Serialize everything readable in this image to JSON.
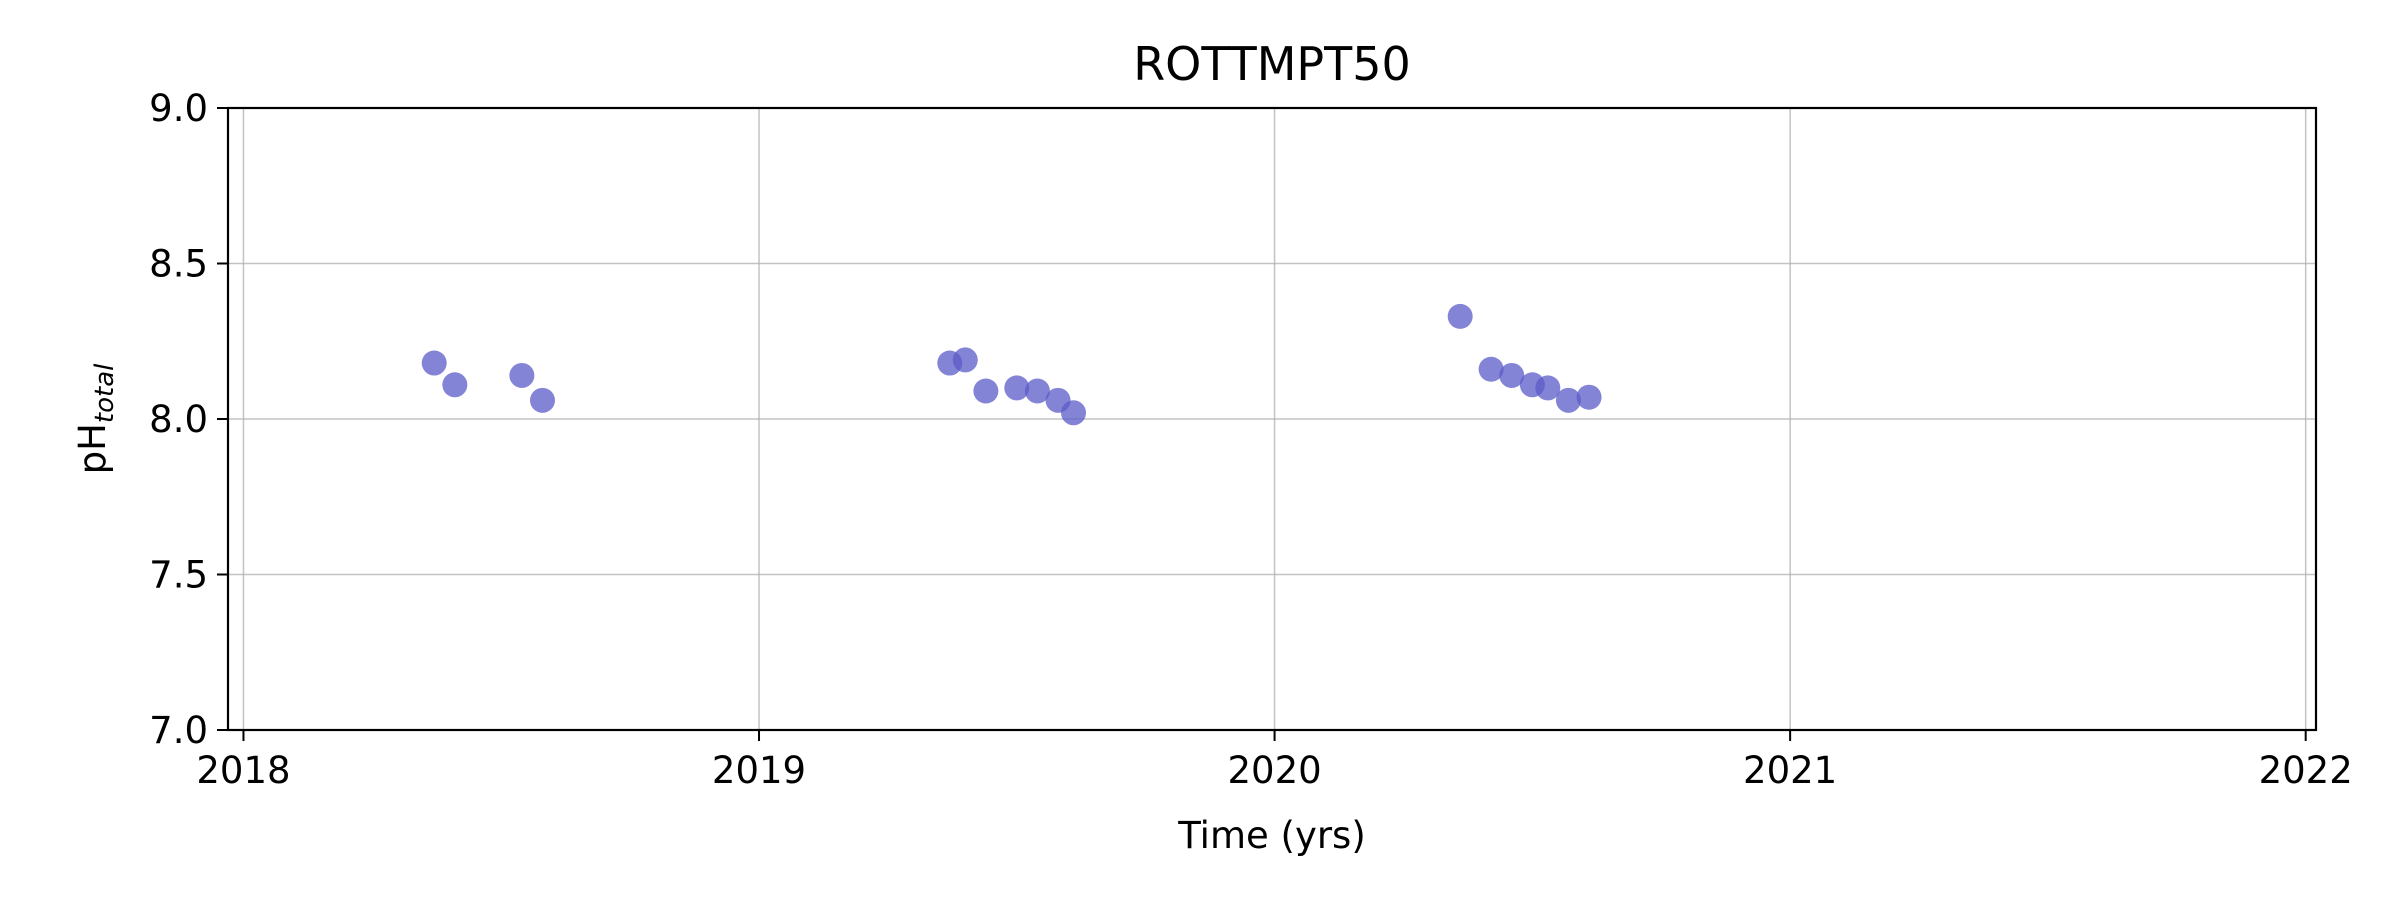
{
  "chart_data": {
    "type": "scatter",
    "title": "ROTTMPT50",
    "xlabel": "Time (yrs)",
    "ylabel_main": "pH",
    "ylabel_sub": "total",
    "xlim": [
      2017.97,
      2022.02
    ],
    "ylim": [
      7.0,
      9.0
    ],
    "xticks": [
      2018,
      2019,
      2020,
      2021,
      2022
    ],
    "xtick_labels": [
      "2018",
      "2019",
      "2020",
      "2021",
      "2022"
    ],
    "yticks": [
      7.0,
      7.5,
      8.0,
      8.5,
      9.0
    ],
    "ytick_labels": [
      "7.0",
      "7.5",
      "8.0",
      "8.5",
      "9.0"
    ],
    "grid": true,
    "marker_color": "#5b5bc8",
    "marker_opacity": 0.75,
    "series": [
      {
        "x": [
          2018.37,
          2018.41,
          2018.54,
          2018.58,
          2019.37,
          2019.4,
          2019.44,
          2019.5,
          2019.54,
          2019.58,
          2019.61,
          2020.36,
          2020.42,
          2020.46,
          2020.5,
          2020.53,
          2020.57,
          2020.61
        ],
        "y": [
          8.18,
          8.11,
          8.14,
          8.06,
          8.18,
          8.19,
          8.09,
          8.1,
          8.09,
          8.06,
          8.02,
          8.33,
          8.16,
          8.14,
          8.11,
          8.1,
          8.06,
          8.07
        ]
      }
    ]
  }
}
